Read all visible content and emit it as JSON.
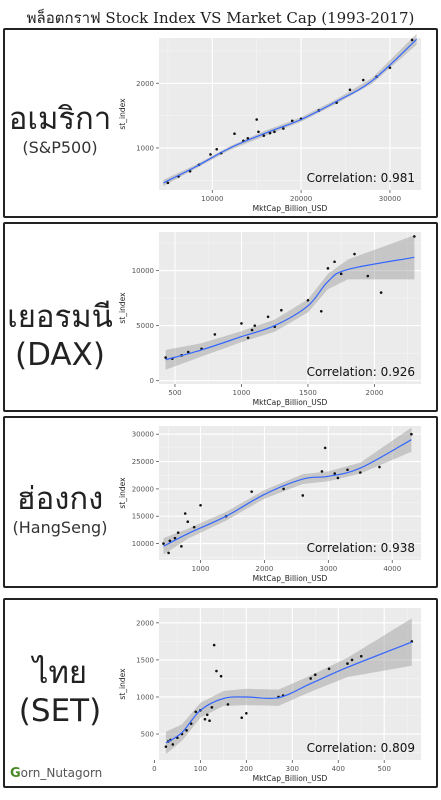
{
  "title": "พล็อตกราฟ Stock Index VS Market Cap (1993-2017)",
  "footer": {
    "logo_letter": "G",
    "text": "orn_Nutagorn"
  },
  "panels": [
    {
      "label_main": "อเมริกา",
      "label_sub": "(S&P500)",
      "correlation": "Correlation:  0.981"
    },
    {
      "label_main": "เยอรมนี",
      "label_sub": "(DAX)",
      "correlation": "Correlation:  0.926"
    },
    {
      "label_main": "ฮ่องกง",
      "label_sub": "(HangSeng)",
      "correlation": "Correlation:  0.938"
    },
    {
      "label_main": "ไทย",
      "label_sub": "(SET)",
      "correlation": "Correlation:  0.809"
    }
  ],
  "chart_data": [
    {
      "type": "scatter",
      "xlabel": "MktCap_Billion_USD",
      "ylabel": "st_index",
      "xlim": [
        4000,
        33500
      ],
      "ylim": [
        350,
        2700
      ],
      "xticks": [
        10000,
        20000,
        30000
      ],
      "yticks": [
        1000,
        2000
      ],
      "x": [
        5000,
        6200,
        7500,
        8500,
        9800,
        10500,
        11000,
        12500,
        13500,
        14000,
        15000,
        15200,
        15800,
        16500,
        17000,
        18000,
        19000,
        20000,
        22000,
        24000,
        25500,
        27000,
        28500,
        30000,
        32500
      ],
      "y": [
        460,
        560,
        640,
        740,
        900,
        980,
        920,
        1220,
        1110,
        1150,
        1440,
        1250,
        1190,
        1230,
        1250,
        1300,
        1420,
        1450,
        1580,
        1700,
        1900,
        2050,
        2100,
        2240,
        2670
      ],
      "fit": [
        [
          4500,
          460
        ],
        [
          8000,
          700
        ],
        [
          12000,
          1000
        ],
        [
          16000,
          1230
        ],
        [
          20000,
          1440
        ],
        [
          24000,
          1720
        ],
        [
          28000,
          2040
        ],
        [
          33000,
          2680
        ]
      ],
      "band": [
        50,
        30,
        30,
        40,
        35,
        35,
        45,
        85
      ]
    },
    {
      "type": "scatter",
      "xlabel": "MktCap_Billion_USD",
      "ylabel": "st_index",
      "xlim": [
        380,
        2350
      ],
      "ylim": [
        -300,
        13500
      ],
      "xticks": [
        500,
        1000,
        1500,
        2000
      ],
      "yticks": [
        0,
        5000,
        10000
      ],
      "x": [
        430,
        480,
        550,
        600,
        700,
        800,
        1000,
        1050,
        1080,
        1100,
        1200,
        1250,
        1300,
        1500,
        1600,
        1650,
        1700,
        1750,
        1850,
        1950,
        2050,
        2300
      ],
      "y": [
        2100,
        2000,
        2300,
        2600,
        2900,
        4200,
        5200,
        3900,
        4600,
        5000,
        5800,
        4900,
        6400,
        7300,
        6300,
        10200,
        10800,
        9700,
        11500,
        9500,
        8000,
        13100
      ],
      "fit": [
        [
          430,
          1900
        ],
        [
          700,
          2800
        ],
        [
          1000,
          4000
        ],
        [
          1250,
          5000
        ],
        [
          1500,
          6800
        ],
        [
          1650,
          9000
        ],
        [
          1800,
          10100
        ],
        [
          2300,
          11200
        ]
      ],
      "band": [
        900,
        600,
        500,
        550,
        600,
        700,
        900,
        2000
      ]
    },
    {
      "type": "scatter",
      "xlabel": "MktCap_Billion_USD",
      "ylabel": "st_index",
      "xlim": [
        350,
        4450
      ],
      "ylim": [
        7000,
        31500
      ],
      "xticks": [
        1000,
        2000,
        3000,
        4000
      ],
      "yticks": [
        10000,
        15000,
        20000,
        25000,
        30000
      ],
      "x": [
        420,
        500,
        520,
        600,
        650,
        700,
        760,
        800,
        900,
        1000,
        1400,
        1800,
        2300,
        2600,
        2900,
        2950,
        3100,
        3150,
        3300,
        3500,
        3800,
        4300
      ],
      "y": [
        10000,
        8300,
        10500,
        11000,
        12000,
        9500,
        15500,
        14000,
        13000,
        17000,
        15000,
        19500,
        20000,
        18800,
        23200,
        27500,
        22800,
        22000,
        23500,
        23000,
        24000,
        30000
      ],
      "fit": [
        [
          420,
          9500
        ],
        [
          800,
          11800
        ],
        [
          1400,
          15000
        ],
        [
          2000,
          19000
        ],
        [
          2600,
          21800
        ],
        [
          3000,
          22300
        ],
        [
          3500,
          23800
        ],
        [
          4300,
          29000
        ]
      ],
      "band": [
        1500,
        900,
        800,
        800,
        900,
        900,
        1000,
        2200
      ]
    },
    {
      "type": "scatter",
      "xlabel": "MktCap_Billion_USD",
      "ylabel": "st_index",
      "xlim": [
        10,
        580
      ],
      "ylim": [
        150,
        2200
      ],
      "xticks": [
        0,
        100,
        200,
        300,
        400,
        500
      ],
      "yticks": [
        500,
        1000,
        1500,
        2000
      ],
      "x": [
        25,
        30,
        35,
        40,
        50,
        60,
        70,
        80,
        90,
        100,
        110,
        115,
        120,
        125,
        130,
        135,
        145,
        160,
        190,
        200,
        270,
        280,
        340,
        350,
        380,
        420,
        430,
        450,
        560
      ],
      "y": [
        330,
        400,
        420,
        360,
        450,
        500,
        550,
        640,
        800,
        820,
        700,
        760,
        680,
        860,
        1700,
        1350,
        1280,
        900,
        720,
        780,
        1000,
        1020,
        1250,
        1300,
        1380,
        1450,
        1500,
        1550,
        1750
      ],
      "fit": [
        [
          25,
          380
        ],
        [
          60,
          520
        ],
        [
          100,
          820
        ],
        [
          150,
          980
        ],
        [
          200,
          1000
        ],
        [
          270,
          990
        ],
        [
          340,
          1180
        ],
        [
          420,
          1400
        ],
        [
          560,
          1740
        ]
      ],
      "band": [
        150,
        110,
        100,
        100,
        110,
        110,
        110,
        130,
        320
      ]
    }
  ]
}
